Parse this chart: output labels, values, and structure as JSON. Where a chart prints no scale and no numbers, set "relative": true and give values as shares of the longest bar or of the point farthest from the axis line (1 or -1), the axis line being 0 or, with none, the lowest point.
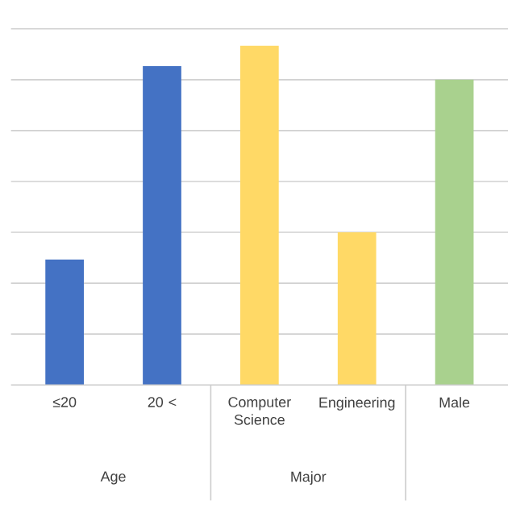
{
  "chart_data": {
    "type": "bar",
    "relative": true,
    "grid": "y",
    "categories": [
      "≤20",
      "20 <",
      "Computer Science",
      "Engineering",
      "Male"
    ],
    "values": [
      0.37,
      0.94,
      1,
      0.45,
      0.9
    ],
    "colors": [
      "#4472c4",
      "#4472c4",
      "#ffd966",
      "#ffd966",
      "#a9d18e"
    ],
    "annotations": [
      "Age",
      "Major"
    ]
  }
}
